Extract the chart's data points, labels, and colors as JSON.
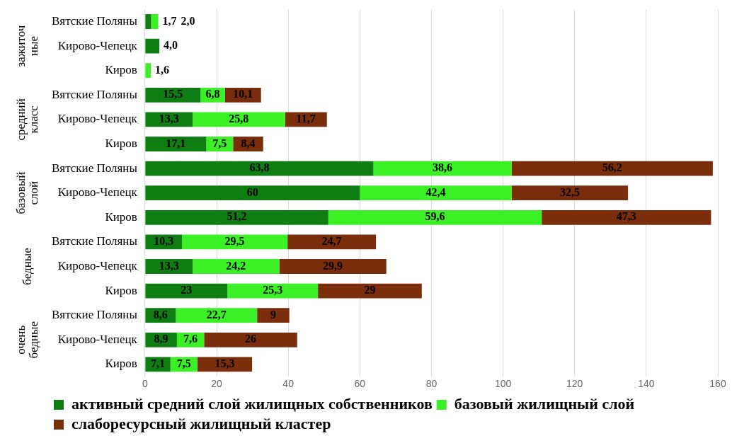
{
  "chart_data": {
    "type": "bar",
    "orientation": "horizontal",
    "stacked": true,
    "categories": [
      "Вятские Поляны",
      "Кирово-Чепецк",
      "Киров",
      "Вятские Поляны",
      "Кирово-Чепецк",
      "Киров",
      "Вятские Поляны",
      "Кирово-Чепецк",
      "Киров",
      "Вятские Поляны",
      "Кирово-Чепецк",
      "Киров",
      "Вятские Поляны",
      "Кирово-Чепецк",
      "Киров"
    ],
    "series": [
      {
        "name": "активный средний слой жилищных собственников",
        "color": "#0e7d12",
        "values": [
          1.7,
          4.0,
          null,
          15.5,
          13.3,
          17.1,
          63.8,
          60,
          51.2,
          10.3,
          13.3,
          23,
          8.6,
          8.9,
          7.1
        ],
        "value_labels": [
          "1,7",
          "4,0",
          null,
          "15,5",
          "13,3",
          "17,1",
          "63,8",
          "60",
          "51,2",
          "10,3",
          "13,3",
          "23",
          "8,6",
          "8,9",
          "7,1"
        ]
      },
      {
        "name": "базовый жилищный слой",
        "color": "#3cf026",
        "values": [
          2.0,
          null,
          1.6,
          6.8,
          25.8,
          7.5,
          38.6,
          42.4,
          59.6,
          29.5,
          24.2,
          25.3,
          22.7,
          7.6,
          7.5
        ],
        "value_labels": [
          "2,0",
          null,
          "1,6",
          "6,8",
          "25,8",
          "7,5",
          "38,6",
          "42,4",
          "59,6",
          "29,5",
          "24,2",
          "25,3",
          "22,7",
          "7,6",
          "7,5"
        ]
      },
      {
        "name": "слаборесурсный жилищный кластер",
        "color": "#7a2e0c",
        "values": [
          null,
          null,
          null,
          10.1,
          11.7,
          8.4,
          56.2,
          32.5,
          47.3,
          24.7,
          29.9,
          29,
          9,
          26,
          15.3
        ],
        "value_labels": [
          null,
          null,
          null,
          "10,1",
          "11,7",
          "8,4",
          "56,2",
          "32,5",
          "47,3",
          "24,7",
          "29,9",
          "29",
          "9",
          "26",
          "15,3"
        ]
      }
    ],
    "xlim": [
      0,
      160
    ],
    "xticks": [
      0,
      20,
      40,
      60,
      80,
      100,
      120,
      140,
      160
    ],
    "grid": "x",
    "legend": "bottom",
    "annotations": [
      "зажиточ\nные",
      "средний\nкласс",
      "базовый\nслой",
      "бедные",
      "очень\nбедные"
    ]
  }
}
